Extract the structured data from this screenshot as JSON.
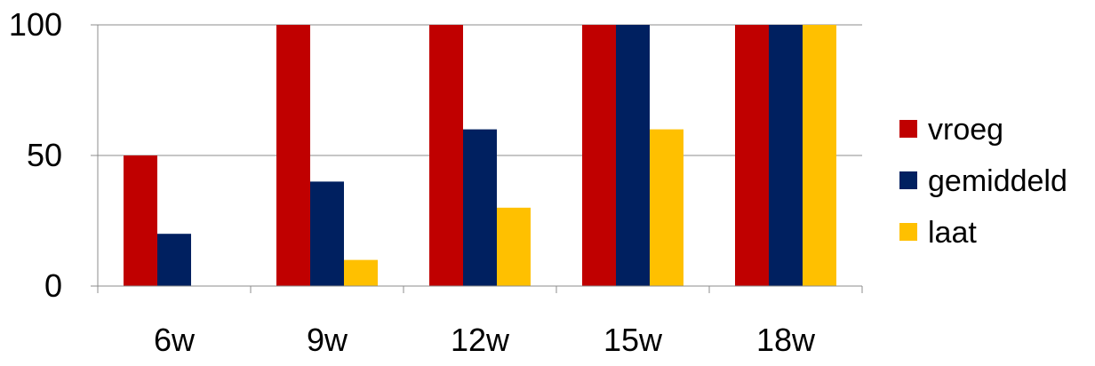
{
  "chart_data": {
    "type": "bar",
    "title": "",
    "xlabel": "",
    "ylabel": "",
    "categories": [
      "6w",
      "9w",
      "12w",
      "15w",
      "18w"
    ],
    "series": [
      {
        "name": "vroeg",
        "values": [
          50,
          100,
          100,
          100,
          100
        ],
        "color": "#C00000"
      },
      {
        "name": "gemiddeld",
        "values": [
          20,
          40,
          60,
          100,
          100
        ],
        "color": "#002060"
      },
      {
        "name": "laat",
        "values": [
          0,
          10,
          30,
          60,
          100
        ],
        "color": "#FFC000"
      }
    ],
    "ylim": [
      0,
      100
    ],
    "yticks": [
      0,
      50,
      100
    ],
    "grid": true,
    "legend": "right"
  }
}
